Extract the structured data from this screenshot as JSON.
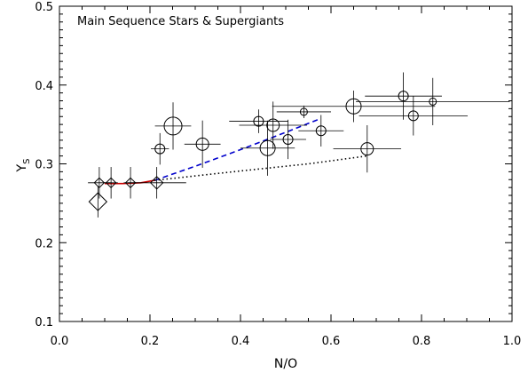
{
  "chart_data": {
    "type": "scatter",
    "title": "",
    "annotation": "Main Sequence Stars & Supergiants",
    "xlabel": "N/O",
    "ylabel_main": "Y",
    "ylabel_sub": "S",
    "xlim": [
      0.0,
      1.0
    ],
    "ylim": [
      0.1,
      0.5
    ],
    "xticks": [
      0.0,
      0.2,
      0.4,
      0.6,
      0.8,
      1.0
    ],
    "xtick_labels": [
      "0.0",
      "0.2",
      "0.4",
      "0.6",
      "0.8",
      "1.0"
    ],
    "yticks": [
      0.1,
      0.2,
      0.3,
      0.4,
      0.5
    ],
    "ytick_labels": [
      "0.1",
      "0.2",
      "0.3",
      "0.4",
      "0.5"
    ],
    "grid": false,
    "circle_points": [
      {
        "x": 0.222,
        "y": 0.319,
        "xerr": 0.02,
        "yerr": 0.02,
        "size": "small"
      },
      {
        "x": 0.251,
        "y": 0.348,
        "xerr": 0.04,
        "yerr": 0.03,
        "size": "large"
      },
      {
        "x": 0.316,
        "y": 0.325,
        "xerr": 0.04,
        "yerr": 0.03,
        "size": "medium"
      },
      {
        "x": 0.44,
        "y": 0.354,
        "xerr": 0.065,
        "yerr": 0.015,
        "size": "small"
      },
      {
        "x": 0.46,
        "y": 0.32,
        "xerr": 0.06,
        "yerr": 0.035,
        "size": "medium-large"
      },
      {
        "x": 0.472,
        "y": 0.349,
        "xerr": 0.075,
        "yerr": 0.03,
        "size": "medium"
      },
      {
        "x": 0.505,
        "y": 0.331,
        "xerr": 0.04,
        "yerr": 0.025,
        "size": "small"
      },
      {
        "x": 0.54,
        "y": 0.366,
        "xerr": 0.06,
        "yerr": 0.008,
        "size": "tiny"
      },
      {
        "x": 0.578,
        "y": 0.342,
        "xerr": 0.05,
        "yerr": 0.02,
        "size": "small"
      },
      {
        "x": 0.65,
        "y": 0.373,
        "xerr": 0.18,
        "yerr": 0.02,
        "size": "medium-large"
      },
      {
        "x": 0.68,
        "y": 0.319,
        "xerr": 0.075,
        "yerr": 0.03,
        "size": "medium"
      },
      {
        "x": 0.76,
        "y": 0.386,
        "xerr": 0.085,
        "yerr": 0.03,
        "size": "small"
      },
      {
        "x": 0.782,
        "y": 0.361,
        "xerr": 0.12,
        "yerr": 0.025,
        "size": "small"
      },
      {
        "x": 0.825,
        "y": 0.379,
        "xerr": 0.17,
        "yerr": 0.03,
        "size": "tiny"
      }
    ],
    "diamond_points": [
      {
        "x": 0.085,
        "y": 0.252,
        "xerr": 0.0,
        "yerr": 0.02,
        "size": "large"
      },
      {
        "x": 0.088,
        "y": 0.276,
        "xerr": 0.025,
        "yerr": 0.02,
        "size": "small"
      },
      {
        "x": 0.114,
        "y": 0.276,
        "xerr": 0.015,
        "yerr": 0.02,
        "size": "small"
      },
      {
        "x": 0.157,
        "y": 0.276,
        "xerr": 0.015,
        "yerr": 0.02,
        "size": "small"
      },
      {
        "x": 0.215,
        "y": 0.276,
        "xerr": 0.065,
        "yerr": 0.02,
        "size": "medium"
      }
    ],
    "curves": [
      {
        "style": "solid",
        "color": "#cc0000",
        "x": [
          0.1,
          0.14,
          0.18,
          0.21
        ],
        "y": [
          0.275,
          0.275,
          0.276,
          0.279
        ]
      },
      {
        "style": "dashed",
        "color": "#0000cc",
        "x": [
          0.21,
          0.3,
          0.4,
          0.5,
          0.575
        ],
        "y": [
          0.279,
          0.297,
          0.318,
          0.34,
          0.357
        ]
      },
      {
        "style": "dotted",
        "color": "#000000",
        "x": [
          0.21,
          0.4,
          0.55,
          0.68
        ],
        "y": [
          0.279,
          0.291,
          0.3,
          0.31
        ]
      }
    ]
  }
}
